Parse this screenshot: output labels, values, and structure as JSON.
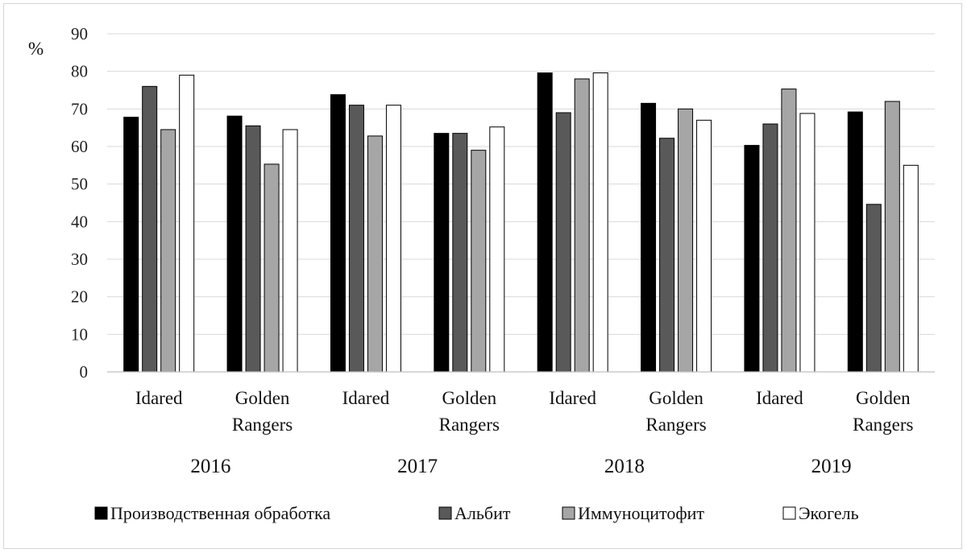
{
  "chart_data": {
    "type": "bar",
    "ylabel": "%",
    "ylim": [
      0,
      90
    ],
    "yticks": [
      0,
      10,
      20,
      30,
      40,
      50,
      60,
      70,
      80,
      90
    ],
    "grid": true,
    "legend_position": "bottom",
    "groups": [
      {
        "year": "2016",
        "categories": [
          [
            "Idared"
          ],
          [
            "Golden",
            "Rangers"
          ]
        ]
      },
      {
        "year": "2017",
        "categories": [
          [
            "Idared"
          ],
          [
            "Golden",
            "Rangers"
          ]
        ]
      },
      {
        "year": "2018",
        "categories": [
          [
            "Idared"
          ],
          [
            "Golden",
            "Rangers"
          ]
        ]
      },
      {
        "year": "2019",
        "categories": [
          [
            "Idared"
          ],
          [
            "Golden",
            "Rangers"
          ]
        ]
      }
    ],
    "series": [
      {
        "name": "Производственная обработка",
        "color": "#000000",
        "values": [
          67.8,
          68.1,
          73.8,
          63.5,
          79.6,
          71.5,
          60.3,
          69.2
        ]
      },
      {
        "name": "Альбит",
        "color": "#595959",
        "values": [
          76.0,
          65.5,
          71.0,
          63.5,
          69.0,
          62.2,
          66.0,
          44.6
        ]
      },
      {
        "name": "Иммуноцитофит",
        "color": "#a6a6a6",
        "values": [
          64.5,
          55.3,
          62.8,
          59.0,
          78.0,
          70.0,
          75.3,
          72.0
        ]
      },
      {
        "name": "Экогель",
        "color": "#ffffff",
        "values": [
          79.0,
          64.5,
          71.0,
          65.2,
          79.6,
          67.0,
          68.8,
          55.0
        ]
      }
    ]
  }
}
